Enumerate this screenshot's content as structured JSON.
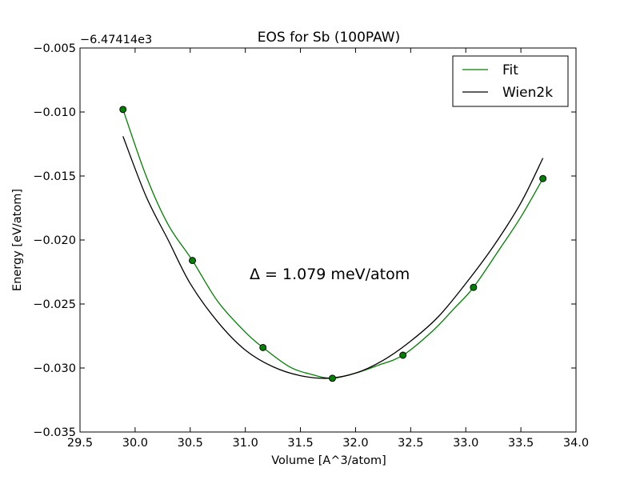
{
  "chart_data": {
    "type": "line",
    "title": "EOS for Sb (100PAW)",
    "xlabel": "Volume [A^3/atom]",
    "ylabel": "Energy [eV/atom]",
    "y_offset_label": "−6.47414e3",
    "xlim": [
      29.5,
      34.0
    ],
    "ylim": [
      -0.035,
      -0.005
    ],
    "x_ticks": [
      29.5,
      30.0,
      30.5,
      31.0,
      31.5,
      32.0,
      32.5,
      33.0,
      33.5,
      34.0
    ],
    "x_tick_labels": [
      "29.5",
      "30.0",
      "30.5",
      "31.0",
      "31.5",
      "32.0",
      "32.5",
      "33.0",
      "33.5",
      "34.0"
    ],
    "y_ticks": [
      -0.035,
      -0.03,
      -0.025,
      -0.02,
      -0.015,
      -0.01,
      -0.005
    ],
    "y_tick_labels": [
      "−0.035",
      "−0.030",
      "−0.025",
      "−0.020",
      "−0.015",
      "−0.010",
      "−0.005"
    ],
    "grid": false,
    "legend_position": "top-right",
    "annotation": "Δ = 1.079 meV/atom",
    "series": [
      {
        "name": "Fit",
        "color": "#008000",
        "style": "line",
        "x": [
          29.89,
          30.1,
          30.3,
          30.52,
          30.75,
          31.0,
          31.16,
          31.4,
          31.6,
          31.79,
          32.0,
          32.2,
          32.43,
          32.7,
          32.9,
          33.07,
          33.3,
          33.5,
          33.7
        ],
        "y": [
          -0.0098,
          -0.015,
          -0.0188,
          -0.0216,
          -0.0248,
          -0.0272,
          -0.0284,
          -0.0299,
          -0.0305,
          -0.0308,
          -0.0304,
          -0.0298,
          -0.029,
          -0.0271,
          -0.0253,
          -0.0237,
          -0.0208,
          -0.0182,
          -0.0152
        ]
      },
      {
        "name": "Wien2k",
        "color": "#000000",
        "style": "line",
        "x": [
          29.89,
          30.1,
          30.3,
          30.5,
          30.75,
          31.0,
          31.25,
          31.5,
          31.75,
          32.0,
          32.25,
          32.5,
          32.75,
          33.0,
          33.25,
          33.5,
          33.7
        ],
        "y": [
          -0.0119,
          -0.0166,
          -0.02,
          -0.0234,
          -0.0264,
          -0.0286,
          -0.0299,
          -0.0306,
          -0.0308,
          -0.0304,
          -0.0294,
          -0.0279,
          -0.026,
          -0.0234,
          -0.0205,
          -0.0171,
          -0.0136
        ]
      },
      {
        "name": "",
        "color": "#008000",
        "style": "markers",
        "x": [
          29.89,
          30.52,
          31.16,
          31.79,
          32.43,
          33.07,
          33.7
        ],
        "y": [
          -0.0098,
          -0.0216,
          -0.0284,
          -0.0308,
          -0.029,
          -0.0237,
          -0.0152
        ]
      }
    ]
  }
}
